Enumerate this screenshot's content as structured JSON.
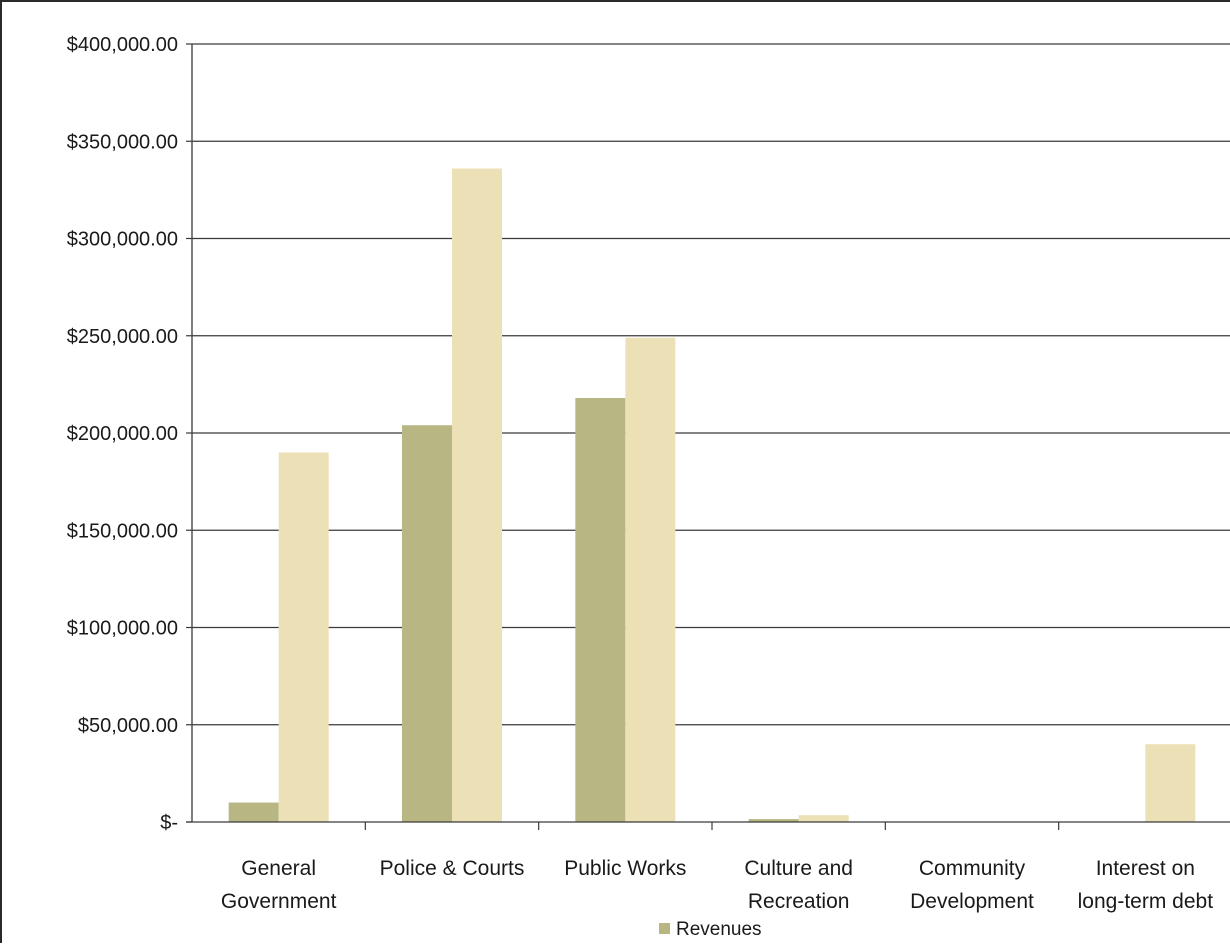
{
  "chart_data": {
    "type": "bar",
    "title": "",
    "xlabel": "",
    "ylabel": "",
    "categories": [
      [
        "General",
        "Government"
      ],
      [
        "Police & Courts"
      ],
      [
        "Public Works"
      ],
      [
        "Culture and",
        "Recreation"
      ],
      [
        "Community",
        "Development"
      ],
      [
        "Interest on",
        "long-term debt"
      ]
    ],
    "series": [
      {
        "name": "Revenues",
        "color": "#b8b783",
        "values": [
          10000,
          204000,
          218000,
          1500,
          0,
          0
        ]
      },
      {
        "name": "",
        "color": "#ece1b6",
        "values": [
          190000,
          336000,
          249000,
          3500,
          0,
          40000
        ]
      }
    ],
    "ylim": [
      0,
      400000
    ],
    "yticks": [
      0,
      50000,
      100000,
      150000,
      200000,
      250000,
      300000,
      350000,
      400000
    ],
    "ytick_labels": [
      "$-",
      "$50,000.00",
      "$100,000.00",
      "$150,000.00",
      "$200,000.00",
      "$250,000.00",
      "$300,000.00",
      "$350,000.00",
      "$400,000.00"
    ],
    "grid": true,
    "legend": {
      "position": "bottom",
      "entries": [
        "Revenues"
      ]
    }
  }
}
